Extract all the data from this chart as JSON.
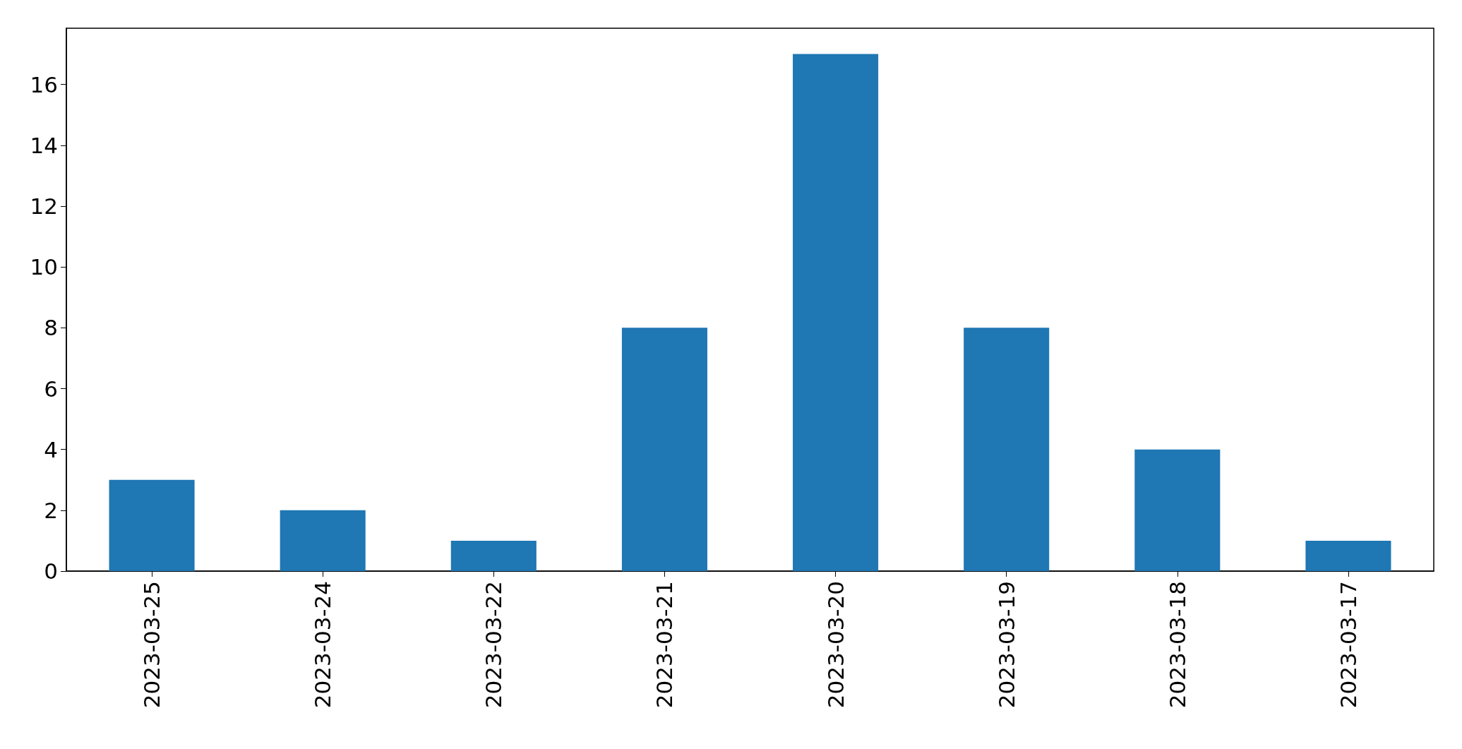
{
  "chart_data": {
    "type": "bar",
    "categories": [
      "2023-03-25",
      "2023-03-24",
      "2023-03-22",
      "2023-03-21",
      "2023-03-20",
      "2023-03-19",
      "2023-03-18",
      "2023-03-17"
    ],
    "values": [
      3,
      2,
      1,
      8,
      17,
      8,
      4,
      1
    ],
    "color": "#1f77b4",
    "ylim": [
      0,
      17.85
    ],
    "yticks": [
      0,
      2,
      4,
      6,
      8,
      10,
      12,
      14,
      16
    ],
    "grid": false
  }
}
